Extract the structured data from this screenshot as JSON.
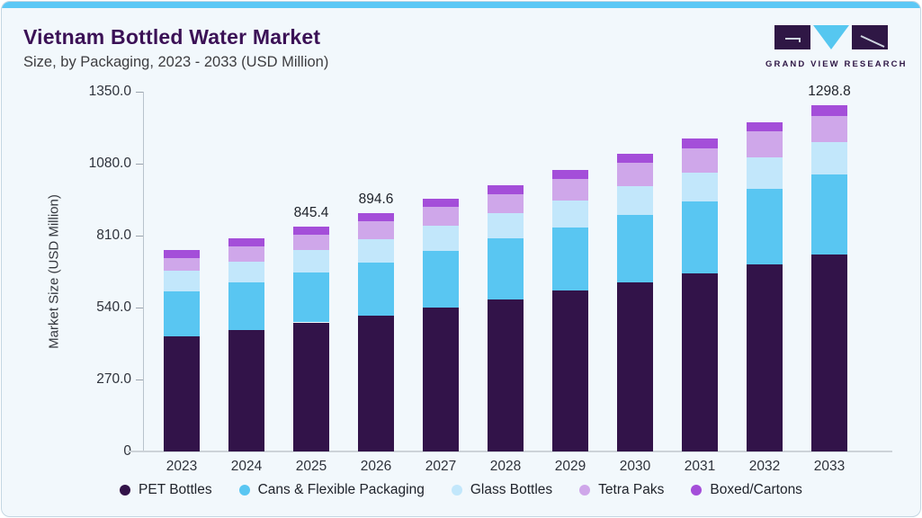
{
  "header": {
    "title": "Vietnam Bottled Water Market",
    "subtitle": "Size, by Packaging, 2023 - 2033 (USD Million)"
  },
  "logo": {
    "text": "GRAND VIEW RESEARCH",
    "dark_color": "#2f1745",
    "accent_color": "#56c7f0"
  },
  "chart_data": {
    "type": "bar",
    "stacked": true,
    "title": "Vietnam Bottled Water Market",
    "subtitle": "Size, by Packaging, 2023 - 2033 (USD Million)",
    "xlabel": "",
    "ylabel": "Market Size (USD Million)",
    "ylim": [
      0,
      1350
    ],
    "ytick_labels": [
      "0",
      "270.0",
      "540.0",
      "810.0",
      "1080.0",
      "1350.0"
    ],
    "ytick_values": [
      0,
      270,
      540,
      810,
      1080,
      1350
    ],
    "grid": false,
    "legend_position": "bottom",
    "categories": [
      "2023",
      "2024",
      "2025",
      "2026",
      "2027",
      "2028",
      "2029",
      "2030",
      "2031",
      "2032",
      "2033"
    ],
    "series": [
      {
        "name": "PET Bottles",
        "color": "#321349",
        "values": [
          431.3,
          456.7,
          484.3,
          508.4,
          539.4,
          571.4,
          603.4,
          634.4,
          667.7,
          702.2,
          737.7
        ]
      },
      {
        "name": "Cans & Flexible Packaging",
        "color": "#59c6f2",
        "values": [
          171.1,
          177.7,
          185.8,
          200.0,
          214.4,
          227.1,
          236.4,
          253.6,
          270.9,
          283.3,
          302.9
        ]
      },
      {
        "name": "Glass Bottles",
        "color": "#c2e7fb",
        "values": [
          74.6,
          79.1,
          87.1,
          89.0,
          91.8,
          96.4,
          103.3,
          107.8,
          107.8,
          118.3,
          120.5
        ]
      },
      {
        "name": "Tetra Paks",
        "color": "#cfa7ea",
        "values": [
          49.3,
          55.0,
          57.5,
          65.0,
          72.4,
          71.3,
          80.3,
          86.0,
          91.8,
          97.5,
          97.7
        ]
      },
      {
        "name": "Boxed/Cartons",
        "color": "#a44ed9",
        "values": [
          30.9,
          31.1,
          30.7,
          32.2,
          31.0,
          34.4,
          34.3,
          34.5,
          35.5,
          35.4,
          40.0
        ]
      }
    ],
    "bar_total_labels": [
      "",
      "",
      "845.4",
      "894.6",
      "",
      "",
      "",
      "",
      "",
      "",
      "1298.8"
    ],
    "totals": [
      757.2,
      799.6,
      845.4,
      894.6,
      949.0,
      1000.6,
      1057.7,
      1116.3,
      1173.7,
      1236.7,
      1298.8
    ]
  }
}
